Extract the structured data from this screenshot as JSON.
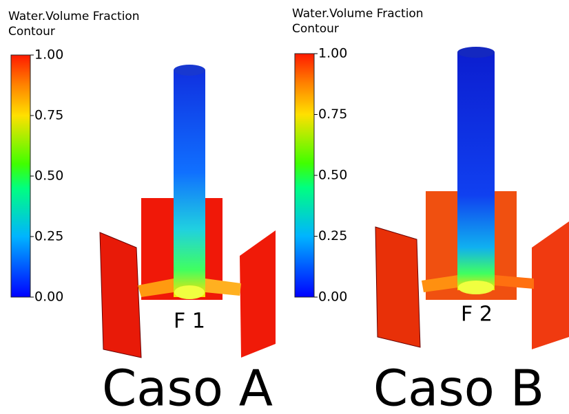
{
  "panels": [
    {
      "legend_title": [
        "Water.Volume Fraction",
        "Contour"
      ],
      "colorbar_ticks": [
        "1.00",
        "0.75",
        "0.50",
        "0.25",
        "0.00"
      ],
      "label": "F 1",
      "caption": "Caso A"
    },
    {
      "legend_title": [
        "Water.Volume Fraction",
        "Contour"
      ],
      "colorbar_ticks": [
        "1.00",
        "0.75",
        "0.50",
        "0.25",
        "0.00"
      ],
      "label": "F 2",
      "caption": "Caso B"
    }
  ]
}
